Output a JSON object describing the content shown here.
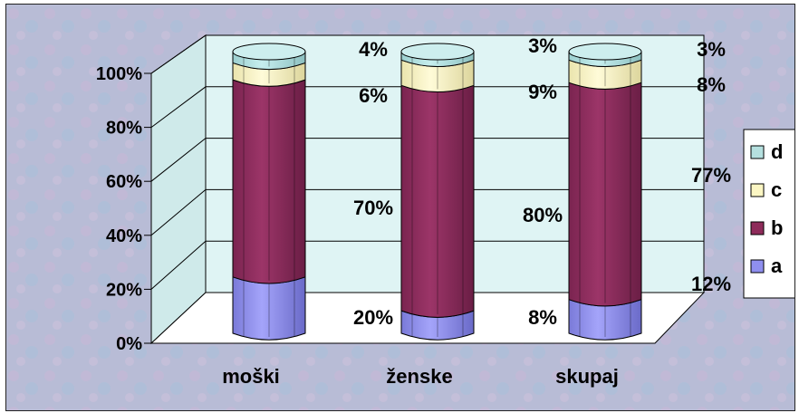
{
  "chart_data": {
    "type": "bar",
    "stacked": true,
    "three_d": true,
    "categories": [
      "moški",
      "ženske",
      "skupaj"
    ],
    "series": [
      {
        "name": "a",
        "values": [
          20,
          8,
          12
        ],
        "labels": [
          "20%",
          "8%",
          "12%"
        ],
        "color": "#8f8fef"
      },
      {
        "name": "b",
        "values": [
          70,
          80,
          77
        ],
        "labels": [
          "70%",
          "80%",
          "77%"
        ],
        "color": "#8e2b5a"
      },
      {
        "name": "c",
        "values": [
          6,
          9,
          8
        ],
        "labels": [
          "6%",
          "9%",
          "8%"
        ],
        "color": "#fbf6c3"
      },
      {
        "name": "d",
        "values": [
          4,
          3,
          3
        ],
        "labels": [
          "4%",
          "3%",
          "3%"
        ],
        "color": "#b5e0df"
      }
    ],
    "y_ticks": [
      "0%",
      "20%",
      "40%",
      "60%",
      "80%",
      "100%"
    ],
    "ylim": [
      0,
      100
    ],
    "grid": true,
    "legend_position": "right",
    "legend_order": [
      "d",
      "c",
      "b",
      "a"
    ]
  },
  "colors": {
    "background": "#b8bcd6",
    "walls": "#dff4f4",
    "floor": "#ffffff"
  }
}
